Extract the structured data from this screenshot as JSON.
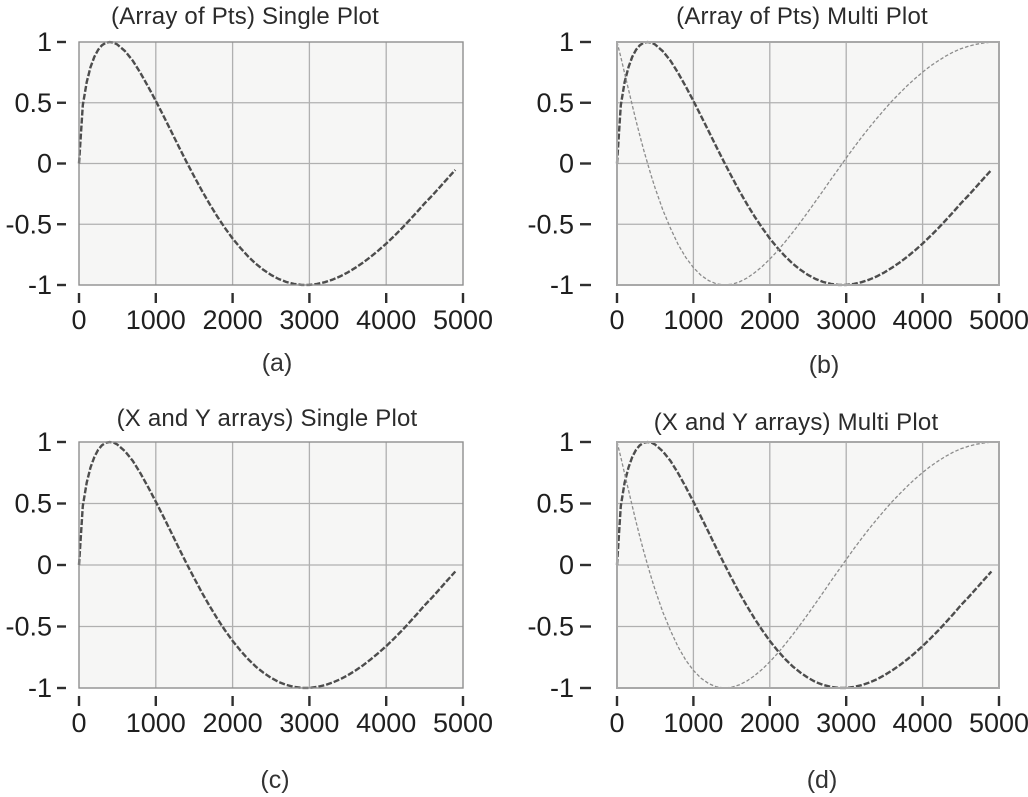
{
  "figure": {
    "description": "Four LabVIEW-style waveform graphs comparing single and multi plot modes",
    "background": "#ffffff"
  },
  "colors": {
    "page_bg": "#ffffff",
    "plot_bg": "#f6f6f5",
    "grid": "#b0b0b0",
    "frame_dark": "#8f8f8f",
    "frame_light": "#a8a8a8",
    "curve_thick": "#4d4d4d",
    "curve_thin": "#8c8c8c",
    "tick": "#2f2f2f",
    "text": "#1f1f1f"
  },
  "chart_data": {
    "type": "line",
    "xlim": [
      0,
      5000
    ],
    "ylim": [
      -1,
      1
    ],
    "grid": true,
    "legend": "none",
    "xtick_values": [
      0,
      1000,
      2000,
      3000,
      4000,
      5000
    ],
    "xtick_labels": [
      "0",
      "1000",
      "2000",
      "3000",
      "4000",
      "5000"
    ],
    "ytick_values": [
      1,
      0.5,
      0,
      -0.5,
      -1
    ],
    "ytick_labels": [
      "1",
      "0.5",
      "0",
      "-0.5",
      "-1"
    ],
    "x": [
      0,
      50,
      100,
      150,
      200,
      250,
      300,
      350,
      400,
      450,
      500,
      600,
      700,
      800,
      900,
      1000,
      1100,
      1200,
      1300,
      1400,
      1500,
      1600,
      1700,
      1800,
      1900,
      2000,
      2100,
      2200,
      2300,
      2400,
      2500,
      2600,
      2700,
      2800,
      2900,
      3000,
      3100,
      3200,
      3300,
      3400,
      3500,
      3600,
      3700,
      3800,
      3900,
      4000,
      4100,
      4200,
      4300,
      4400,
      4500,
      4600,
      4700,
      4800,
      4900
    ],
    "waveforms": {
      "sine": [
        0,
        0.48,
        0.669,
        0.793,
        0.879,
        0.937,
        0.974,
        0.994,
        1.0,
        0.995,
        0.979,
        0.924,
        0.846,
        0.746,
        0.633,
        0.515,
        0.392,
        0.265,
        0.138,
        0.013,
        -0.107,
        -0.224,
        -0.333,
        -0.435,
        -0.53,
        -0.617,
        -0.694,
        -0.764,
        -0.824,
        -0.875,
        -0.917,
        -0.951,
        -0.975,
        -0.991,
        -0.999,
        -0.999,
        -0.991,
        -0.977,
        -0.956,
        -0.929,
        -0.896,
        -0.858,
        -0.815,
        -0.767,
        -0.715,
        -0.659,
        -0.599,
        -0.536,
        -0.469,
        -0.4,
        -0.328,
        -0.263,
        -0.193,
        -0.123,
        -0.053
      ],
      "cosine": [
        1.0,
        0.877,
        0.743,
        0.609,
        0.478,
        0.35,
        0.228,
        0.111,
        0.0,
        -0.105,
        -0.204,
        -0.382,
        -0.533,
        -0.666,
        -0.774,
        -0.857,
        -0.92,
        -0.964,
        -0.99,
        -1.0,
        -0.994,
        -0.975,
        -0.943,
        -0.9,
        -0.848,
        -0.787,
        -0.72,
        -0.645,
        -0.567,
        -0.484,
        -0.398,
        -0.311,
        -0.221,
        -0.132,
        -0.043,
        0.045,
        0.131,
        0.215,
        0.294,
        0.371,
        0.444,
        0.514,
        0.579,
        0.641,
        0.699,
        0.752,
        0.801,
        0.844,
        0.883,
        0.917,
        0.945,
        0.965,
        0.981,
        0.992,
        0.999
      ]
    },
    "charts": [
      {
        "id": "a",
        "title": "(Array of Pts) Single Plot",
        "caption": "(a)",
        "series": [
          {
            "name": "sine",
            "weight": "thick"
          }
        ]
      },
      {
        "id": "b",
        "title": "(Array of Pts) Multi Plot",
        "caption": "(b)",
        "series": [
          {
            "name": "sine",
            "weight": "thick"
          },
          {
            "name": "cosine",
            "weight": "thin"
          }
        ]
      },
      {
        "id": "c",
        "title": "(X and Y arrays) Single Plot",
        "caption": "(c)",
        "series": [
          {
            "name": "sine",
            "weight": "thick"
          }
        ]
      },
      {
        "id": "d",
        "title": "(X and Y arrays) Multi Plot",
        "caption": "(d)",
        "series": [
          {
            "name": "sine",
            "weight": "thick"
          },
          {
            "name": "cosine",
            "weight": "thin"
          }
        ]
      }
    ]
  }
}
